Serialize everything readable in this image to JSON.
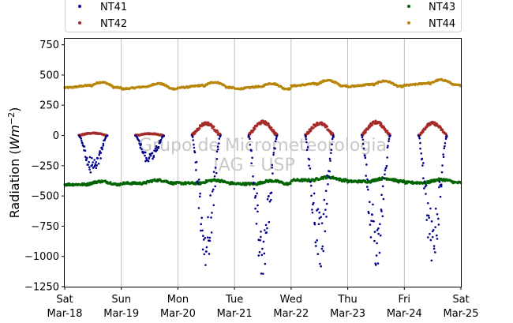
{
  "chart_data": {
    "type": "scatter",
    "ylabel_main": "Radiation (",
    "ylabel_unit": "Wm",
    "ylabel_exp": "−2",
    "ylabel_close": ")",
    "ylim": [
      -1250,
      800
    ],
    "yticks": [
      750,
      500,
      250,
      0,
      -250,
      -500,
      -750,
      -1000,
      -1250
    ],
    "ytick_labels": [
      "750",
      "500",
      "250",
      "0",
      "−250",
      "−500",
      "−750",
      "−1000",
      "−1250"
    ],
    "xlim": [
      "2018-03-18",
      "2018-03-25"
    ],
    "xticks": [
      {
        "day": "Sat",
        "date": "Mar-18"
      },
      {
        "day": "Sun",
        "date": "Mar-19"
      },
      {
        "day": "Mon",
        "date": "Mar-20"
      },
      {
        "day": "Tue",
        "date": "Mar-21"
      },
      {
        "day": "Wed",
        "date": "Mar-22"
      },
      {
        "day": "Thu",
        "date": "Mar-23"
      },
      {
        "day": "Fri",
        "date": "Mar-24"
      },
      {
        "day": "Sat",
        "date": "Mar-25"
      }
    ],
    "grid": "vertical",
    "legend_position": "top",
    "watermark": [
      "Grupo de Micrometeorologia",
      "IAG - USP"
    ],
    "series": [
      {
        "name": "NT41",
        "color": "#00008b",
        "kind": "shortwave-down",
        "daily_minimum": [
          -340,
          -260,
          -1080,
          -1180,
          -1120,
          -1150,
          -1060
        ]
      },
      {
        "name": "NT42",
        "color": "#a52a2a",
        "kind": "shortwave-up",
        "daily_maximum": [
          20,
          15,
          100,
          110,
          100,
          110,
          100
        ]
      },
      {
        "name": "NT43",
        "color": "#006400",
        "kind": "longwave-down",
        "daily_mean": [
          -405,
          -395,
          -395,
          -400,
          -370,
          -380,
          -390
        ]
      },
      {
        "name": "NT44",
        "color": "#b8860b",
        "kind": "longwave-up",
        "daily_mean": [
          405,
          395,
          405,
          395,
          420,
          415,
          425
        ]
      }
    ]
  }
}
